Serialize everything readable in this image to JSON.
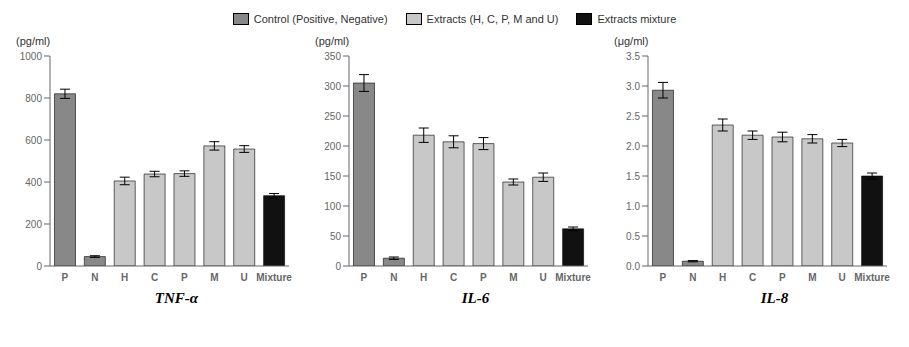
{
  "chart_data": [
    {
      "type": "bar",
      "title": "TNF-α",
      "ylabel": "(pg/ml)",
      "categories": [
        "P",
        "N",
        "H",
        "C",
        "P",
        "M",
        "U",
        "Mixture"
      ],
      "series": [
        {
          "name": "Control (Positive, Negative)",
          "color": "#888888",
          "values": [
            820,
            45,
            null,
            null,
            null,
            null,
            null,
            null
          ],
          "errors": [
            22,
            4,
            null,
            null,
            null,
            null,
            null,
            null
          ]
        },
        {
          "name": "Extracts (H, C, P, M and U)",
          "color": "#c8c8c8",
          "values": [
            null,
            null,
            405,
            438,
            440,
            572,
            557,
            null
          ],
          "errors": [
            null,
            null,
            18,
            13,
            13,
            20,
            16,
            null
          ]
        },
        {
          "name": "Extracts mixture",
          "color": "#111111",
          "values": [
            null,
            null,
            null,
            null,
            null,
            null,
            null,
            335
          ],
          "errors": [
            null,
            null,
            null,
            null,
            null,
            null,
            null,
            10
          ]
        }
      ],
      "ylim": [
        0,
        1000
      ],
      "yticks": [
        0,
        200,
        400,
        600,
        800,
        1000
      ]
    },
    {
      "type": "bar",
      "title": "IL-6",
      "ylabel": "(pg/ml)",
      "categories": [
        "P",
        "N",
        "H",
        "C",
        "P",
        "M",
        "U",
        "Mixture"
      ],
      "series": [
        {
          "name": "Control (Positive, Negative)",
          "color": "#888888",
          "values": [
            305,
            13,
            null,
            null,
            null,
            null,
            null,
            null
          ],
          "errors": [
            14,
            2,
            null,
            null,
            null,
            null,
            null,
            null
          ]
        },
        {
          "name": "Extracts (H, C, P, M and U)",
          "color": "#c8c8c8",
          "values": [
            null,
            null,
            218,
            207,
            204,
            140,
            148,
            null
          ],
          "errors": [
            null,
            null,
            12,
            10,
            10,
            5,
            7,
            null
          ]
        },
        {
          "name": "Extracts mixture",
          "color": "#111111",
          "values": [
            null,
            null,
            null,
            null,
            null,
            null,
            null,
            62
          ],
          "errors": [
            null,
            null,
            null,
            null,
            null,
            null,
            null,
            3
          ]
        }
      ],
      "ylim": [
        0,
        350
      ],
      "yticks": [
        0,
        50,
        100,
        150,
        200,
        250,
        300,
        350
      ]
    },
    {
      "type": "bar",
      "title": "IL-8",
      "ylabel": "(μg/ml)",
      "categories": [
        "P",
        "N",
        "H",
        "C",
        "P",
        "M",
        "U",
        "Mixture"
      ],
      "series": [
        {
          "name": "Control (Positive, Negative)",
          "color": "#888888",
          "values": [
            2.93,
            0.08,
            null,
            null,
            null,
            null,
            null,
            null
          ],
          "errors": [
            0.13,
            0.01,
            null,
            null,
            null,
            null,
            null,
            null
          ]
        },
        {
          "name": "Extracts (H, C, P, M and U)",
          "color": "#c8c8c8",
          "values": [
            null,
            null,
            2.35,
            2.18,
            2.15,
            2.12,
            2.05,
            null
          ],
          "errors": [
            null,
            null,
            0.1,
            0.07,
            0.08,
            0.07,
            0.06,
            null
          ]
        },
        {
          "name": "Extracts mixture",
          "color": "#111111",
          "values": [
            null,
            null,
            null,
            null,
            null,
            null,
            null,
            1.5
          ],
          "errors": [
            null,
            null,
            null,
            null,
            null,
            null,
            null,
            0.05
          ]
        }
      ],
      "ylim": [
        0,
        3.5
      ],
      "yticks": [
        {
          "value": 0,
          "label": "0.0"
        },
        0.5,
        {
          "value": 1.0,
          "label": "1.0"
        },
        1.5,
        {
          "value": 2.0,
          "label": "2.0"
        },
        2.5,
        {
          "value": 3.0,
          "label": "3.0"
        },
        3.5
      ]
    }
  ]
}
